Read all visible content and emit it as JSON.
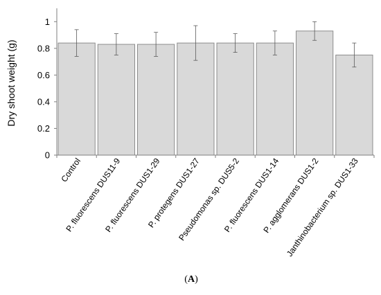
{
  "chart_data": {
    "type": "bar",
    "title": "",
    "xlabel": "",
    "ylabel": "Dry shoot weight (g)",
    "ylim": [
      0,
      1.1
    ],
    "yticks": [
      0,
      0.2,
      0.4,
      0.6,
      0.8,
      1
    ],
    "ytick_labels": [
      "0",
      "0.2",
      "0.4",
      "0.6",
      "0.8",
      "1"
    ],
    "grid": false,
    "legend": "none",
    "categories": [
      "Control",
      "P. fluorescens DUS11-9",
      "P. fluorescens DUS1-29",
      "P. protegens DUS1-27",
      "Pseudomonas sp. DUS5-2",
      "P. fluorescens DUS1-14",
      "P. agglomerans DUS1-2",
      "Janthinobacterium sp. DUS1-33"
    ],
    "values": [
      0.84,
      0.83,
      0.83,
      0.84,
      0.84,
      0.84,
      0.93,
      0.75
    ],
    "error": [
      0.1,
      0.08,
      0.09,
      0.13,
      0.07,
      0.09,
      0.07,
      0.09
    ],
    "colors": {
      "bar_fill": "#d9d9d9",
      "bar_stroke": "#8c8c8c",
      "axis": "#7f7f7f",
      "error_bar": "#595959"
    }
  },
  "panel_label": "(A)"
}
